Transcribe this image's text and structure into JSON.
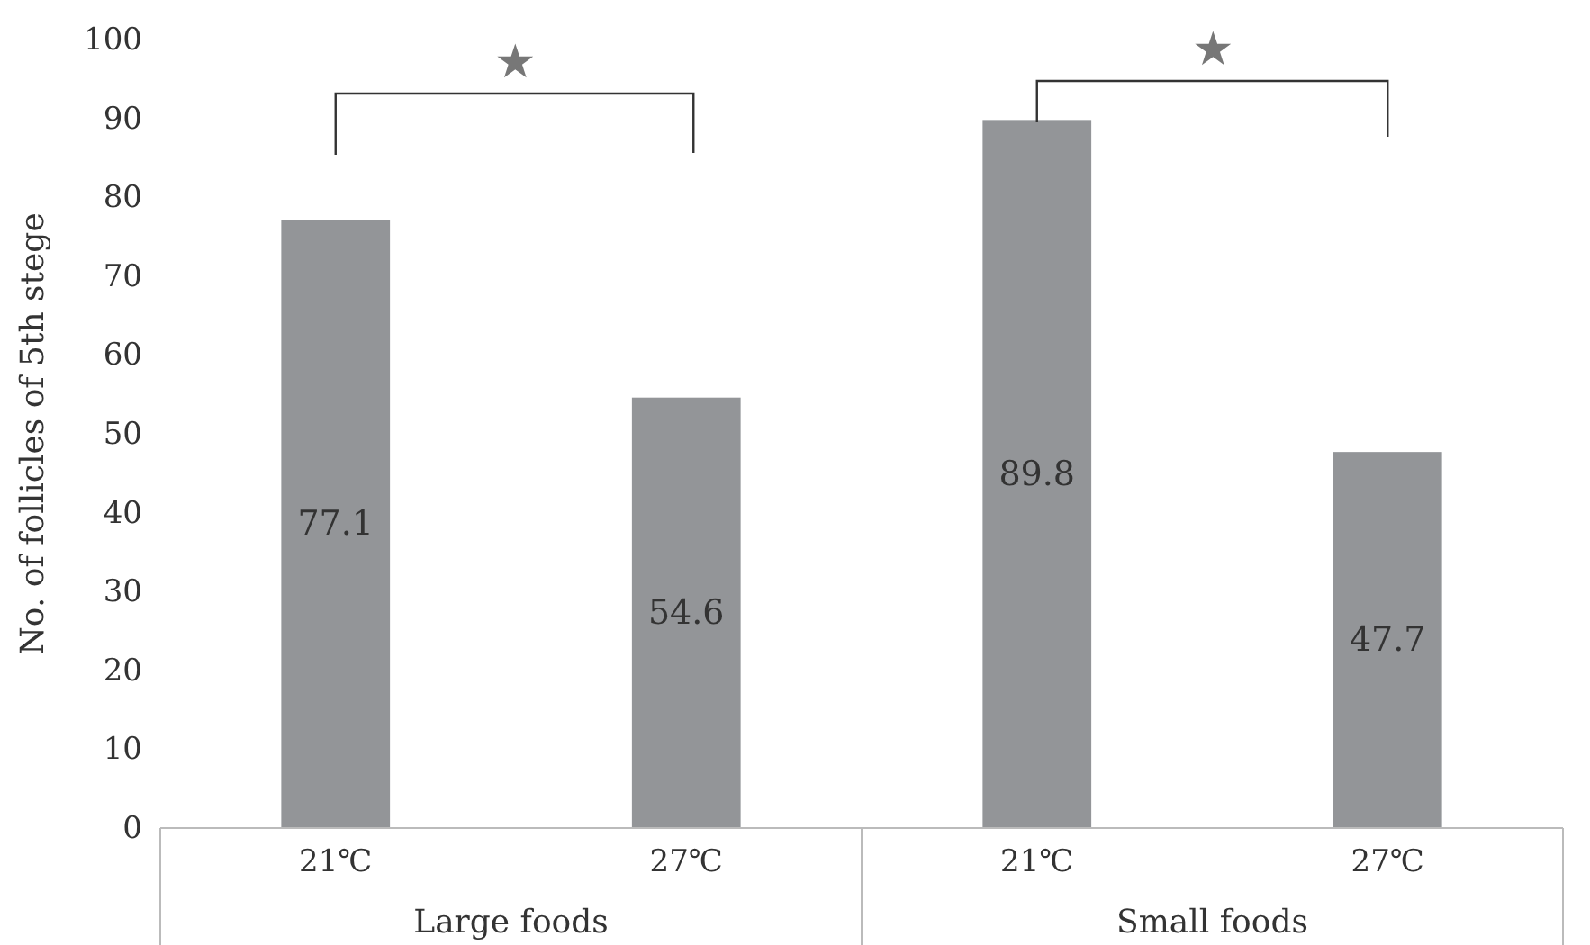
{
  "chart_data": {
    "type": "bar",
    "ylabel": "No. of follicles of 5th stege",
    "categories": [
      "21℃",
      "27℃",
      "21℃",
      "27℃"
    ],
    "values": [
      77.1,
      54.6,
      89.8,
      47.7
    ],
    "color": "#939598",
    "ylim": [
      0,
      100
    ],
    "yticks": [
      0,
      10,
      20,
      30,
      40,
      50,
      60,
      70,
      80,
      90,
      100
    ],
    "data_labels": true,
    "grid": false,
    "annotations": [
      "★",
      "★",
      "Large foods",
      "Small foods"
    ]
  }
}
